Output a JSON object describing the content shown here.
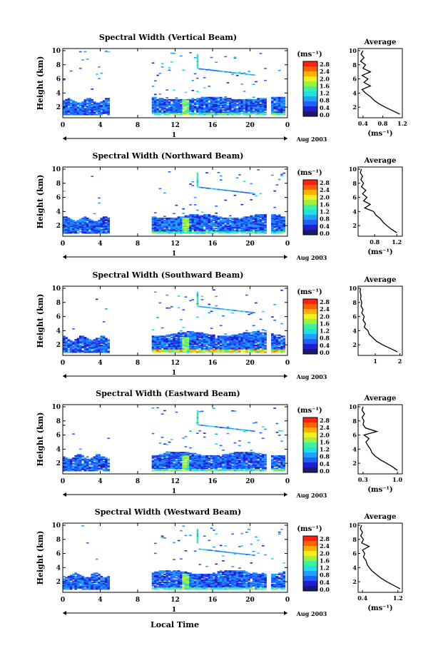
{
  "xaxis_title": "Local Time",
  "date_label": "Aug 2003",
  "day_label": "1",
  "colorbar_unit": "(ms⁻¹)",
  "colorbar_ticks": [
    "2.8",
    "2.4",
    "2.0",
    "1.6",
    "1.2",
    "0.8",
    "0.4",
    "0.0"
  ],
  "colormap": [
    "#1a1a6e",
    "#2020d0",
    "#2060ff",
    "#20a0ff",
    "#20e0e0",
    "#40f0a0",
    "#a0f040",
    "#f0f020",
    "#ffb000",
    "#ff6000",
    "#ff2010"
  ],
  "chart_data": [
    {
      "type": "heatmap",
      "title": "Spectral Width (Vertical Beam)",
      "ylabel": "Height (km)",
      "xlim": [
        0,
        24
      ],
      "ylim": [
        0.5,
        10.3
      ],
      "x_ticks": [
        "0",
        "4",
        "8",
        "12",
        "16",
        "20",
        "0"
      ],
      "y_ticks": [
        "2",
        "4",
        "6",
        "8",
        "10"
      ],
      "data_gaps": [
        [
          4.8,
          9.3
        ],
        [
          21.7,
          22.2
        ]
      ],
      "dense_layer_top_km": [
        3.0,
        3.4
      ],
      "colorbar_range": [
        0.0,
        2.8
      ],
      "profile": {
        "title": "Average",
        "xlabel": "(ms⁻¹)",
        "x_ticks": [
          "0.4",
          "0.8",
          "1.2"
        ],
        "xlim": [
          0.3,
          1.2
        ],
        "ylim": [
          0.5,
          10.3
        ],
        "y_ticks": [
          "2",
          "4",
          "6",
          "8",
          "10"
        ],
        "heights": [
          1.0,
          1.5,
          2.0,
          2.5,
          3.0,
          3.5,
          4.0,
          4.5,
          5.0,
          5.5,
          6.0,
          6.5,
          7.0,
          7.5,
          8.0,
          8.5,
          9.0,
          9.5,
          10.0
        ],
        "values": [
          1.15,
          1.0,
          0.85,
          0.72,
          0.62,
          0.55,
          0.45,
          0.38,
          0.55,
          0.42,
          0.5,
          0.38,
          0.55,
          0.4,
          0.45,
          0.35,
          0.42,
          0.36,
          0.4
        ]
      }
    },
    {
      "type": "heatmap",
      "title": "Spectral Width (Northward Beam)",
      "ylabel": "Height (km)",
      "xlim": [
        0,
        24
      ],
      "ylim": [
        0.5,
        10.3
      ],
      "x_ticks": [
        "0",
        "4",
        "8",
        "12",
        "16",
        "20",
        "0"
      ],
      "y_ticks": [
        "2",
        "4",
        "6",
        "8",
        "10"
      ],
      "data_gaps": [
        [
          4.8,
          9.3
        ],
        [
          21.7,
          22.2
        ]
      ],
      "dense_layer_top_km": [
        3.0,
        3.6
      ],
      "colorbar_range": [
        0.0,
        2.8
      ],
      "profile": {
        "title": "Average",
        "xlabel": "(ms⁻¹)",
        "x_ticks": [
          "0.8",
          "1.2"
        ],
        "xlim": [
          0.5,
          1.3
        ],
        "ylim": [
          0.5,
          10.3
        ],
        "y_ticks": [
          "2",
          "4",
          "6",
          "8",
          "10"
        ],
        "heights": [
          1.0,
          1.5,
          2.0,
          2.5,
          3.0,
          3.5,
          4.0,
          4.5,
          5.0,
          5.5,
          6.0,
          6.5,
          7.0,
          7.5,
          8.0,
          8.5,
          9.0,
          9.5,
          10.0
        ],
        "values": [
          1.2,
          1.1,
          1.02,
          0.95,
          0.9,
          0.82,
          0.78,
          0.62,
          0.72,
          0.6,
          0.66,
          0.58,
          0.64,
          0.56,
          0.6,
          0.55,
          0.58,
          0.54,
          0.56
        ]
      }
    },
    {
      "type": "heatmap",
      "title": "Spectral Width (Southward Beam)",
      "ylabel": "Height (km)",
      "xlim": [
        0,
        24
      ],
      "ylim": [
        0.5,
        10.3
      ],
      "x_ticks": [
        "0",
        "4",
        "8",
        "12",
        "16",
        "20",
        "0"
      ],
      "y_ticks": [
        "2",
        "4",
        "6",
        "8",
        "10"
      ],
      "data_gaps": [
        [
          4.8,
          9.3
        ],
        [
          21.7,
          22.2
        ]
      ],
      "dense_layer_top_km": [
        3.2,
        3.8
      ],
      "colorbar_range": [
        0.0,
        2.8
      ],
      "profile": {
        "title": "Average",
        "xlabel": "",
        "x_ticks": [
          "1",
          "2"
        ],
        "xlim": [
          0.3,
          2.1
        ],
        "ylim": [
          0.5,
          10.3
        ],
        "y_ticks": [
          "2",
          "4",
          "6",
          "8",
          "10"
        ],
        "heights": [
          1.0,
          1.5,
          2.0,
          2.5,
          3.0,
          3.5,
          4.0,
          4.5,
          5.0,
          5.5,
          6.0,
          6.5,
          7.0,
          7.5,
          8.0,
          8.5,
          9.0,
          9.5,
          10.0
        ],
        "values": [
          1.9,
          1.6,
          1.3,
          1.05,
          0.9,
          0.75,
          0.7,
          0.55,
          0.6,
          0.5,
          0.55,
          0.45,
          0.5,
          0.42,
          0.45,
          0.4,
          0.42,
          0.38,
          0.4
        ]
      }
    },
    {
      "type": "heatmap",
      "title": "Spectral Width (Eastward Beam)",
      "ylabel": "Height (km)",
      "xlim": [
        0,
        24
      ],
      "ylim": [
        0.5,
        10.3
      ],
      "x_ticks": [
        "0",
        "4",
        "8",
        "12",
        "16",
        "20",
        "0"
      ],
      "y_ticks": [
        "2",
        "4",
        "6",
        "8",
        "10"
      ],
      "data_gaps": [
        [
          4.8,
          9.3
        ],
        [
          21.7,
          22.2
        ]
      ],
      "dense_layer_top_km": [
        3.0,
        3.6
      ],
      "colorbar_range": [
        0.0,
        2.8
      ],
      "profile": {
        "title": "Average",
        "xlabel": "(ms⁻¹)",
        "x_ticks": [
          "0.3",
          "1.0"
        ],
        "xlim": [
          0.2,
          1.1
        ],
        "ylim": [
          0.5,
          10.3
        ],
        "y_ticks": [
          "2",
          "4",
          "6",
          "8",
          "10"
        ],
        "heights": [
          1.0,
          1.5,
          2.0,
          2.5,
          3.0,
          3.5,
          4.0,
          4.5,
          5.0,
          5.5,
          6.0,
          6.5,
          7.0,
          7.5,
          8.0,
          8.5,
          9.0,
          9.5,
          10.0
        ],
        "values": [
          1.0,
          0.9,
          0.78,
          0.65,
          0.55,
          0.48,
          0.45,
          0.4,
          0.36,
          0.42,
          0.32,
          0.58,
          0.35,
          0.3,
          0.32,
          0.28,
          0.33,
          0.28,
          0.3
        ]
      }
    },
    {
      "type": "heatmap",
      "title": "Spectral Width (Westward Beam)",
      "ylabel": "Height (km)",
      "xlim": [
        0,
        24
      ],
      "ylim": [
        0.5,
        10.3
      ],
      "x_ticks": [
        "0",
        "4",
        "8",
        "12",
        "16",
        "20",
        "0"
      ],
      "y_ticks": [
        "2",
        "4",
        "6",
        "8",
        "10"
      ],
      "data_gaps": [
        [
          4.8,
          9.3
        ],
        [
          21.7,
          22.2
        ]
      ],
      "dense_layer_top_km": [
        3.0,
        3.6
      ],
      "colorbar_range": [
        0.0,
        2.8
      ],
      "profile": {
        "title": "Average",
        "xlabel": "(ms⁻¹)",
        "x_ticks": [
          "0.4",
          "1.2"
        ],
        "xlim": [
          0.3,
          1.3
        ],
        "ylim": [
          0.5,
          10.3
        ],
        "y_ticks": [
          "2",
          "4",
          "6",
          "8",
          "10"
        ],
        "heights": [
          1.0,
          1.5,
          2.0,
          2.5,
          3.0,
          3.5,
          4.0,
          4.5,
          5.0,
          5.5,
          6.0,
          6.5,
          7.0,
          7.5,
          8.0,
          8.5,
          9.0,
          9.5,
          10.0
        ],
        "values": [
          1.25,
          1.1,
          0.95,
          0.82,
          0.72,
          0.62,
          0.55,
          0.5,
          0.48,
          0.42,
          0.45,
          0.4,
          0.55,
          0.38,
          0.42,
          0.36,
          0.4,
          0.35,
          0.38
        ]
      }
    }
  ]
}
